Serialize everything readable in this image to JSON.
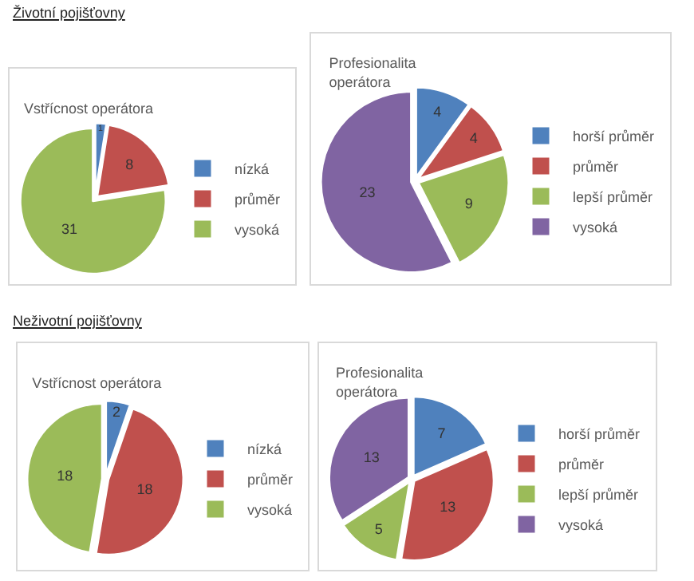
{
  "chart_data": [
    {
      "type": "pie",
      "title": "Vstřícnost operátora",
      "annotations": [
        "Životní pojišťovny"
      ],
      "categories": [
        "nízká",
        "průměr",
        "vysoká"
      ],
      "values": [
        1,
        8,
        31
      ],
      "colors": [
        "#4f81bd",
        "#c0504d",
        "#9bbb59"
      ],
      "data_labels": true,
      "legend": "right"
    },
    {
      "type": "pie",
      "title": "Profesionalita\noperátora",
      "categories": [
        "horší průměr",
        "průměr",
        "lepší průměr",
        "vysoká"
      ],
      "values": [
        4,
        4,
        9,
        23
      ],
      "colors": [
        "#4f81bd",
        "#c0504d",
        "#9bbb59",
        "#8064a2"
      ],
      "data_labels": true,
      "legend": "right"
    },
    {
      "type": "pie",
      "title": "Vstřícnost operátora",
      "annotations": [
        "Neživotní pojišťovny"
      ],
      "categories": [
        "nízká",
        "průměr",
        "vysoká"
      ],
      "values": [
        2,
        18,
        18
      ],
      "colors": [
        "#4f81bd",
        "#c0504d",
        "#9bbb59"
      ],
      "data_labels": true,
      "legend": "right"
    },
    {
      "type": "pie",
      "title": "Profesionalita\noperátora",
      "categories": [
        "horší průměr",
        "průměr",
        "lepší průměr",
        "vysoká"
      ],
      "values": [
        7,
        13,
        5,
        13
      ],
      "colors": [
        "#4f81bd",
        "#c0504d",
        "#9bbb59",
        "#8064a2"
      ],
      "data_labels": true,
      "legend": "right"
    }
  ]
}
